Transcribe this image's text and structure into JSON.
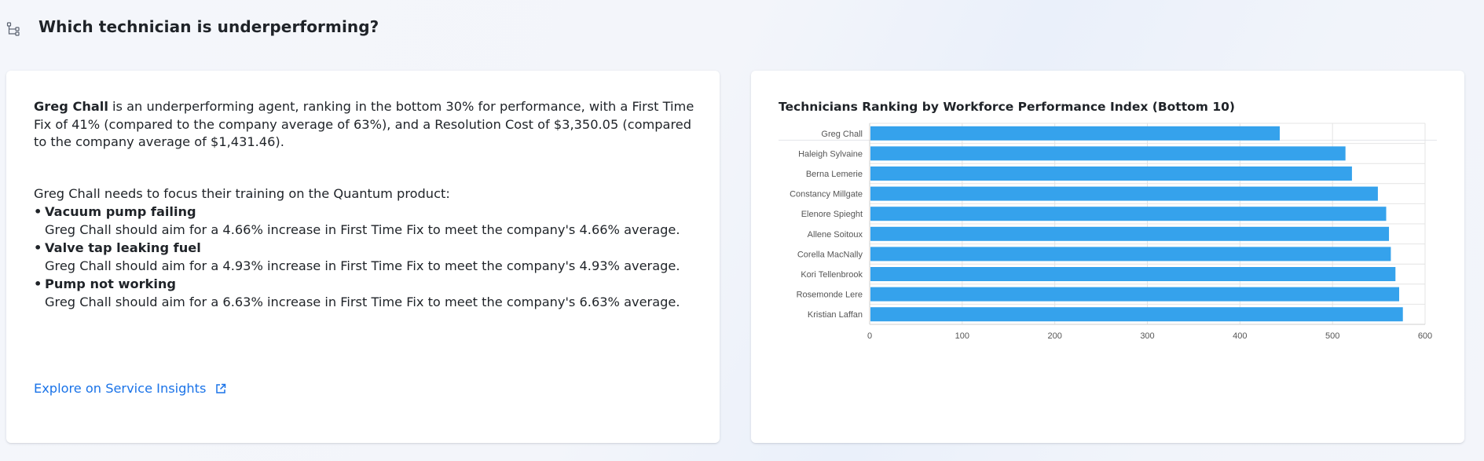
{
  "header": {
    "title": "Which technician is underperforming?",
    "icon": "hierarchy-icon"
  },
  "insight": {
    "agent_name": "Greg Chall",
    "summary_rest": " is an underperforming agent, ranking in the bottom 30% for performance, with a First Time Fix of 41% (compared to the company average of 63%), and a Resolution Cost of $3,350.05 (compared to the company average of $1,431.46).",
    "focus_intro": "Greg Chall needs to focus their training on the Quantum product:",
    "items": [
      {
        "title": "Vacuum pump failing",
        "desc": "Greg Chall should aim for a 4.66% increase in First Time Fix to meet the company's 4.66% average."
      },
      {
        "title": "Valve tap leaking fuel",
        "desc": "Greg Chall should aim for a 4.93% increase in First Time Fix to meet the company's 4.93% average."
      },
      {
        "title": "Pump not working",
        "desc": "Greg Chall should aim for a 6.63% increase in First Time Fix to meet the company's 6.63% average."
      }
    ],
    "explore_link": "Explore on Service Insights"
  },
  "chart_data": {
    "type": "bar",
    "orientation": "horizontal",
    "title": "Technicians Ranking by Workforce Performance Index (Bottom 10)",
    "xlabel": "",
    "ylabel": "",
    "categories": [
      "Greg Chall",
      "Haleigh Sylvaine",
      "Berna Lemerie",
      "Constancy Millgate",
      "Elenore Spieght",
      "Allene Soitoux",
      "Corella MacNally",
      "Kori Tellenbrook",
      "Rosemonde Lere",
      "Kristian Laffan"
    ],
    "values": [
      443,
      514,
      521,
      549,
      558,
      561,
      563,
      568,
      572,
      576
    ],
    "xlim": [
      0,
      600
    ],
    "xticks": [
      0,
      100,
      200,
      300,
      400,
      500,
      600
    ],
    "grid": true,
    "bar_color": "#35a2ec"
  }
}
